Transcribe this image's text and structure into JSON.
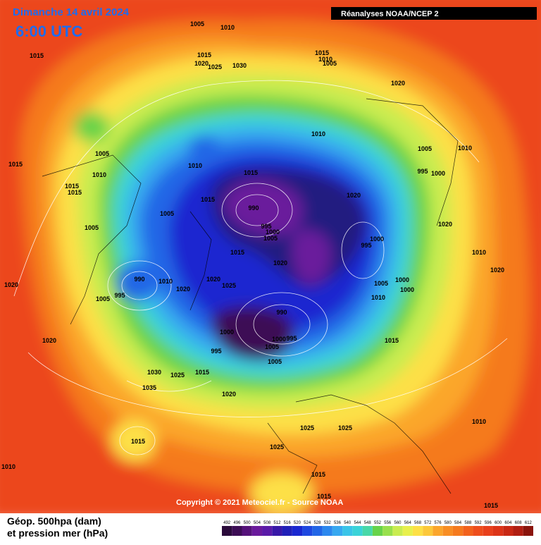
{
  "header": {
    "title": "Dimanche 14 avril 2024",
    "time": "6:00 UTC",
    "source": "Réanalyses NOAA/NCEP 2"
  },
  "copyright": "Copyright © 2021 Meteociel.fr - Source NOAA",
  "legend": {
    "title_lines": [
      "Géop. 500hpa (dam)",
      "et pression mer (hPa)"
    ],
    "ticks": [
      492,
      496,
      500,
      504,
      508,
      512,
      516,
      520,
      524,
      528,
      532,
      536,
      540,
      544,
      548,
      552,
      556,
      560,
      564,
      568,
      572,
      576,
      580,
      584,
      588,
      592,
      596,
      600,
      604,
      608,
      612
    ],
    "colors": [
      "#2a0a3a",
      "#3c0d55",
      "#55127a",
      "#6a1a9c",
      "#5a1aa8",
      "#3818a8",
      "#2020b8",
      "#1a28d0",
      "#1e48e0",
      "#2266e6",
      "#2c88ee",
      "#37a8f0",
      "#3ac4e8",
      "#3ad3d8",
      "#48d8a8",
      "#67d34a",
      "#98e04c",
      "#c9ec50",
      "#e8f04c",
      "#fde046",
      "#fcc83a",
      "#fba62c",
      "#f88e24",
      "#f57a1e",
      "#f2621c",
      "#ee4e1c",
      "#e8401c",
      "#dc3418",
      "#c82814",
      "#b01e12",
      "#8a140c"
    ]
  },
  "isobar_labels": [
    1005,
    1010,
    1015,
    1015,
    1020,
    1025,
    1030,
    1015,
    1010,
    1005,
    1020,
    1010,
    1005,
    1015,
    1010,
    1010,
    1015,
    995,
    1000,
    1005,
    1010,
    1015,
    1015,
    1015,
    1020,
    990,
    1005,
    1005,
    995,
    1000,
    1005,
    1020,
    1000,
    995,
    1015,
    1010,
    1020,
    1020,
    990,
    1010,
    1020,
    1025,
    1020,
    1005,
    1000,
    1000,
    1020,
    1005,
    995,
    1010,
    990,
    1000,
    1000,
    995,
    1015,
    1020,
    995,
    1005,
    1005,
    1030,
    1025,
    1015,
    1035,
    1020,
    1010,
    1025,
    1025,
    1015,
    1025,
    1010,
    1015,
    1015,
    1015
  ]
}
